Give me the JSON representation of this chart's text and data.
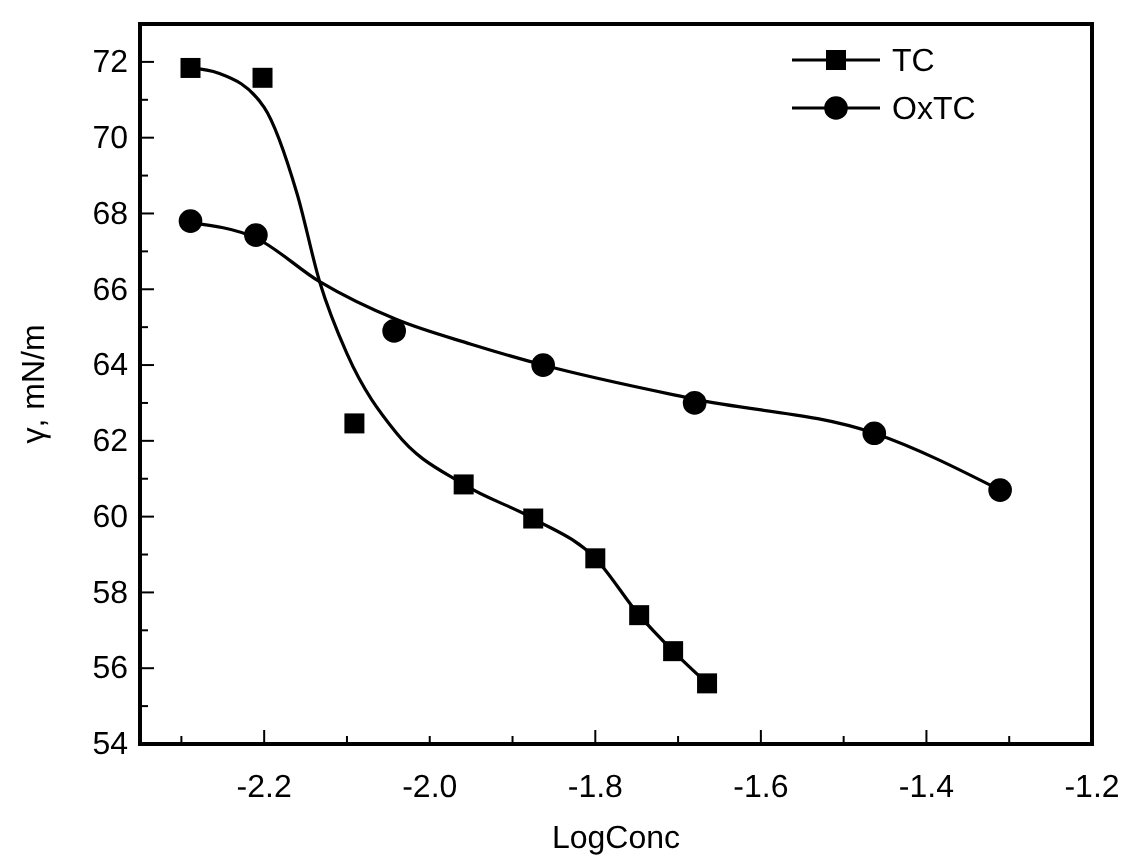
{
  "chart_data": {
    "type": "scatter",
    "xlabel": "LogConc",
    "ylabel": "γ, mN/m",
    "xlim": [
      -2.35,
      -1.2
    ],
    "ylim": [
      54,
      73
    ],
    "xticks": [
      {
        "value": -2.3,
        "label": null
      },
      -2.2,
      {
        "value": -2.1,
        "label": null
      },
      {
        "value": -2,
        "label": "-2.0"
      },
      {
        "value": -1.9,
        "label": null
      },
      -1.8,
      {
        "value": -1.7,
        "label": null
      },
      -1.6,
      {
        "value": -1.5,
        "label": null
      },
      -1.4,
      {
        "value": -1.3,
        "label": null
      },
      -1.2
    ],
    "yticks": [
      54,
      {
        "value": 55,
        "label": null
      },
      56,
      {
        "value": 57,
        "label": null
      },
      58,
      {
        "value": 59,
        "label": null
      },
      60,
      {
        "value": 61,
        "label": null
      },
      62,
      {
        "value": 63,
        "label": null
      },
      64,
      {
        "value": 65,
        "label": null
      },
      66,
      {
        "value": 67,
        "label": null
      },
      68,
      {
        "value": 69,
        "label": null
      },
      70,
      {
        "value": 71,
        "label": null
      },
      72
    ],
    "grid": false,
    "legend": "top right",
    "series": [
      {
        "name": "TC",
        "marker": "square",
        "color": "#000000",
        "x": [
          -2.289,
          -2.202,
          -2.091,
          -1.959,
          -1.875,
          -1.8,
          -1.747,
          -1.706,
          -1.665
        ],
        "values": [
          71.84,
          71.58,
          62.46,
          60.85,
          59.95,
          58.9,
          57.4,
          56.45,
          55.6
        ]
      },
      {
        "name": "OxTC",
        "marker": "circle",
        "color": "#000000",
        "x": [
          -2.289,
          -2.21,
          -2.043,
          -1.863,
          -1.68,
          -1.463,
          -1.311
        ],
        "values": [
          67.8,
          67.43,
          64.9,
          64.0,
          63.0,
          62.2,
          60.7
        ]
      },
      {
        "type": "line",
        "marker": "none",
        "color": "#000000",
        "x": [
          -2.289,
          -2.255,
          -2.2,
          -2.16,
          -2.133,
          -2.1,
          -2.04,
          -1.959,
          -1.875,
          -1.8,
          -1.747,
          -1.706,
          -1.665
        ],
        "values": [
          71.84,
          71.7,
          70.8,
          68.5,
          66.2,
          64.3,
          62.2,
          60.85,
          59.95,
          58.9,
          57.4,
          56.45,
          55.6
        ]
      },
      {
        "type": "line",
        "marker": "none",
        "color": "#000000",
        "x": [
          -2.289,
          -2.21,
          -2.133,
          -2.04,
          -1.95,
          -1.863,
          -1.68,
          -1.463,
          -1.311
        ],
        "values": [
          67.75,
          67.35,
          66.2,
          65.2,
          64.55,
          64.0,
          63.1,
          62.2,
          60.7
        ]
      }
    ]
  }
}
